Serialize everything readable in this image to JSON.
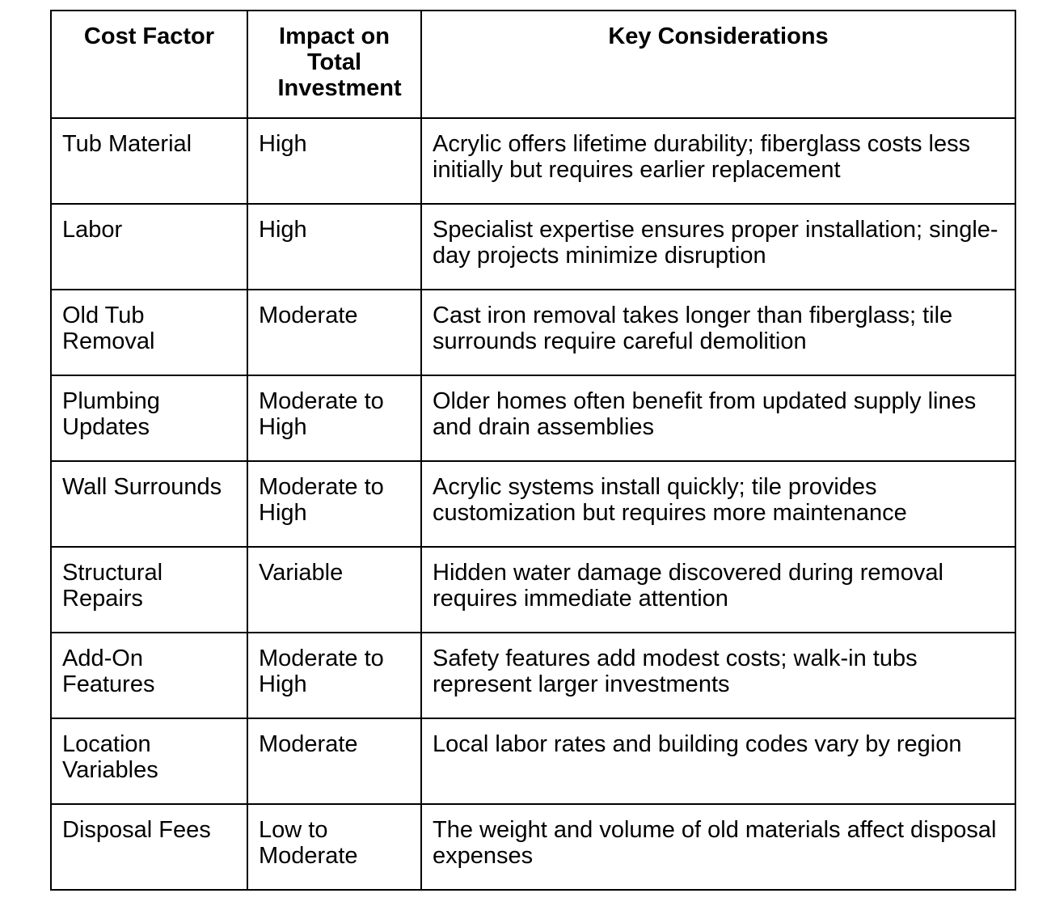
{
  "table": {
    "headers": {
      "factor": "Cost Factor",
      "impact": "Impact on Total Investment",
      "considerations": "Key Considerations"
    },
    "rows": [
      {
        "factor": "Tub Material",
        "impact": "High",
        "considerations": "Acrylic offers lifetime durability; fiberglass costs less initially but requires earlier replacement"
      },
      {
        "factor": "Labor",
        "impact": "High",
        "considerations": "Specialist expertise ensures proper installation; single-day projects minimize disruption"
      },
      {
        "factor": "Old Tub Removal",
        "impact": "Moderate",
        "considerations": "Cast iron removal takes longer than fiberglass; tile surrounds require careful demolition"
      },
      {
        "factor": "Plumbing Updates",
        "impact": "Moderate to High",
        "considerations": "Older homes often benefit from updated supply lines and drain assemblies"
      },
      {
        "factor": "Wall Surrounds",
        "impact": "Moderate to High",
        "considerations": "Acrylic systems install quickly; tile provides customization but requires more maintenance"
      },
      {
        "factor": "Structural Repairs",
        "impact": "Variable",
        "considerations": "Hidden water damage discovered during removal requires immediate attention"
      },
      {
        "factor": "Add-On Features",
        "impact": "Moderate to High",
        "considerations": "Safety features add modest costs; walk-in tubs represent larger investments"
      },
      {
        "factor": "Location Variables",
        "impact": "Moderate",
        "considerations": "Local labor rates and building codes vary by region"
      },
      {
        "factor": "Disposal Fees",
        "impact": "Low to Moderate",
        "considerations": "The weight and volume of old materials affect disposal expenses"
      }
    ],
    "colors": {
      "border": "#000000",
      "background": "#ffffff",
      "text": "#000000"
    }
  }
}
